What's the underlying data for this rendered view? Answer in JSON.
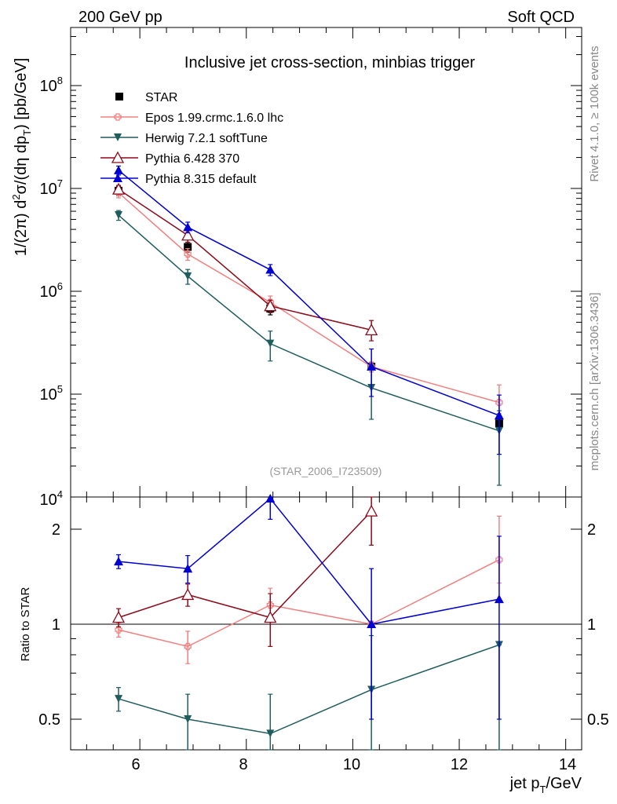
{
  "header": {
    "left_label": "200 GeV pp",
    "right_label": "Soft QCD",
    "side_top": "Rivet 4.1.0, ≥ 100k events",
    "side_bottom": "mcplots.cern.ch [arXiv:1306.3436]",
    "analysis_id": "(STAR_2006_I723509)"
  },
  "chart_data": [
    {
      "type": "scatter",
      "panel": "main",
      "title": "Inclusive jet cross-section, minbias trigger",
      "ylabel": "1/(2π)  d²σ/(dη dp_T) [pb/GeV]",
      "yscale": "log",
      "ylim": [
        10000,
        400000000
      ],
      "xlim": [
        4.7,
        14.3
      ],
      "x_ticks": [
        6,
        8,
        10,
        12,
        14
      ],
      "y_tick_labels": [
        "10^4",
        "10^5",
        "10^6",
        "10^7",
        "10^8"
      ],
      "legend_position": "top-left",
      "series": [
        {
          "name": "STAR",
          "color": "#000000",
          "marker": "square",
          "x": [
            5.6,
            6.9,
            8.45,
            10.35,
            12.75
          ],
          "y": [
            9500000,
            2700000,
            680000,
            185000,
            52000
          ],
          "yerr_lo": [
            1000000,
            300000,
            90000,
            20000,
            6000
          ],
          "yerr_hi": [
            1000000,
            300000,
            90000,
            20000,
            6000
          ]
        },
        {
          "name": "Epos 1.99.crmc.1.6.0 lhc",
          "color": "#f08080",
          "marker": "cross-open",
          "x": [
            5.6,
            6.9,
            8.45,
            10.35,
            12.75
          ],
          "y": [
            9100000,
            2300000,
            780000,
            185000,
            83000
          ],
          "yerr_lo": [
            1000000,
            300000,
            120000,
            20000,
            18000
          ],
          "yerr_hi": [
            1000000,
            300000,
            120000,
            20000,
            40000
          ]
        },
        {
          "name": "Herwig 7.2.1 softTune",
          "color": "#1f5c5c",
          "marker": "triangle-down",
          "x": [
            5.6,
            6.9,
            8.45,
            10.35,
            12.75
          ],
          "y": [
            5500000,
            1400000,
            310000,
            115000,
            44000
          ],
          "yerr_lo": [
            600000,
            230000,
            100000,
            58000,
            31000
          ],
          "yerr_hi": [
            600000,
            230000,
            100000,
            58000,
            25000
          ]
        },
        {
          "name": "Pythia 6.428 370",
          "color": "#8b0a1a",
          "marker": "triangle-up-open",
          "x": [
            5.6,
            6.9,
            8.45,
            10.35,
            12.75
          ],
          "y": [
            9800000,
            3500000,
            720000,
            420000,
            0
          ],
          "yerr_lo": [
            900000,
            500000,
            100000,
            90000,
            0
          ],
          "yerr_hi": [
            900000,
            500000,
            100000,
            100000,
            0
          ]
        },
        {
          "name": "Pythia 8.315 default",
          "color": "#0000d0",
          "marker": "triangle-up",
          "x": [
            5.6,
            6.9,
            8.45,
            10.35,
            12.75
          ],
          "y": [
            15000000,
            4200000,
            1620000,
            185000,
            62000
          ],
          "yerr_lo": [
            1500000,
            500000,
            200000,
            90000,
            36000
          ],
          "yerr_hi": [
            1500000,
            500000,
            200000,
            90000,
            36000
          ]
        }
      ]
    },
    {
      "type": "scatter",
      "panel": "ratio",
      "ylabel": "Ratio to STAR",
      "xlabel": "jet p_T/GeV",
      "yscale": "log",
      "ylim": [
        0.34,
        2.5
      ],
      "xlim": [
        4.7,
        14.3
      ],
      "x_ticks": [
        6,
        8,
        10,
        12,
        14
      ],
      "y_ticks": [
        0.5,
        1,
        2
      ],
      "reference_line": 1,
      "series": [
        {
          "name": "Epos 1.99.crmc.1.6.0 lhc",
          "color": "#f08080",
          "marker": "cross-open",
          "x": [
            5.6,
            6.9,
            8.45,
            10.35,
            12.75
          ],
          "y": [
            0.96,
            0.85,
            1.15,
            1.0,
            1.6
          ],
          "yerr_lo": [
            0.05,
            0.1,
            0.1,
            0.02,
            0.25
          ],
          "yerr_hi": [
            0.05,
            0.1,
            0.15,
            0.02,
            0.6
          ]
        },
        {
          "name": "Herwig 7.2.1 softTune",
          "color": "#1f5c5c",
          "marker": "triangle-down",
          "x": [
            5.6,
            6.9,
            8.45,
            10.35,
            12.75
          ],
          "y": [
            0.58,
            0.5,
            0.45,
            0.62,
            0.86
          ],
          "yerr_lo": [
            0.05,
            0.1,
            0.1,
            0.32,
            0.6
          ],
          "yerr_hi": [
            0.05,
            0.1,
            0.15,
            0.3,
            0.0
          ]
        },
        {
          "name": "Pythia 6.428 370",
          "color": "#8b0a1a",
          "marker": "triangle-up-open",
          "x": [
            5.6,
            6.9,
            8.45,
            10.35
          ],
          "y": [
            1.05,
            1.24,
            1.05,
            2.28
          ],
          "yerr_lo": [
            0.07,
            0.1,
            0.2,
            0.5
          ],
          "yerr_hi": [
            0.07,
            0.1,
            0.2,
            0.5
          ]
        },
        {
          "name": "Pythia 8.315 default",
          "color": "#0000d0",
          "marker": "triangle-up",
          "x": [
            5.6,
            6.9,
            8.45,
            10.35,
            12.75
          ],
          "y": [
            1.58,
            1.5,
            2.5,
            1.0,
            1.2
          ],
          "yerr_lo": [
            0.08,
            0.15,
            0.35,
            0.5,
            0.7
          ],
          "yerr_hi": [
            0.08,
            0.15,
            0.1,
            0.5,
            0.7
          ]
        }
      ]
    }
  ]
}
